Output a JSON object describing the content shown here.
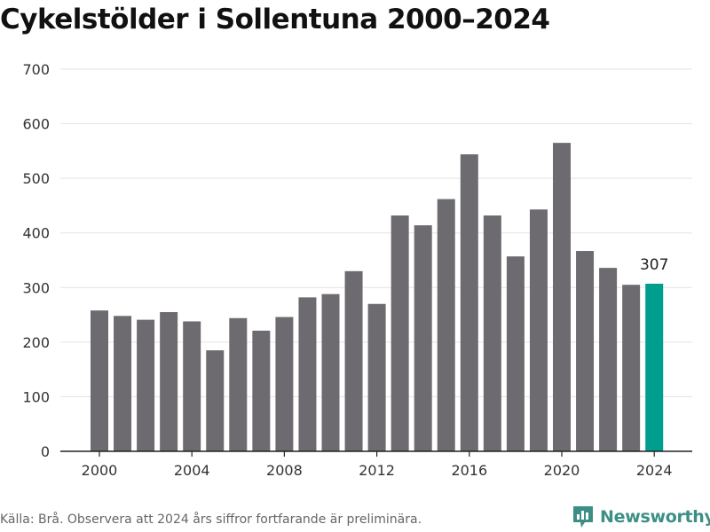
{
  "title": "Cykelstölder i Sollentuna 2000–2024",
  "source": "Källa: Brå. Observera att 2024 års siffror fortfarande är preliminära.",
  "brand": "Newsworthy",
  "colors": {
    "bar": "#6d6b70",
    "highlight": "#009e8e",
    "grid": "#e3e3e3",
    "text": "#333333",
    "brand": "#3d8f85"
  },
  "chart_data": {
    "type": "bar",
    "title": "Cykelstölder i Sollentuna 2000–2024",
    "x": [
      2000,
      2001,
      2002,
      2003,
      2004,
      2005,
      2006,
      2007,
      2008,
      2009,
      2010,
      2011,
      2012,
      2013,
      2014,
      2015,
      2016,
      2017,
      2018,
      2019,
      2020,
      2021,
      2022,
      2023,
      2024
    ],
    "values": [
      258,
      248,
      241,
      255,
      238,
      185,
      244,
      221,
      246,
      282,
      288,
      330,
      270,
      432,
      414,
      462,
      544,
      432,
      357,
      443,
      565,
      367,
      336,
      305,
      307
    ],
    "highlight_index": 24,
    "data_labels": [
      {
        "x": 2024,
        "text": "307"
      }
    ],
    "yticks": [
      0,
      100,
      200,
      300,
      400,
      500,
      600,
      700
    ],
    "xticks": [
      2000,
      2004,
      2008,
      2012,
      2016,
      2020,
      2024
    ],
    "ylim": [
      0,
      700
    ],
    "xlabel": "",
    "ylabel": "",
    "grid": true,
    "legend": "none"
  }
}
